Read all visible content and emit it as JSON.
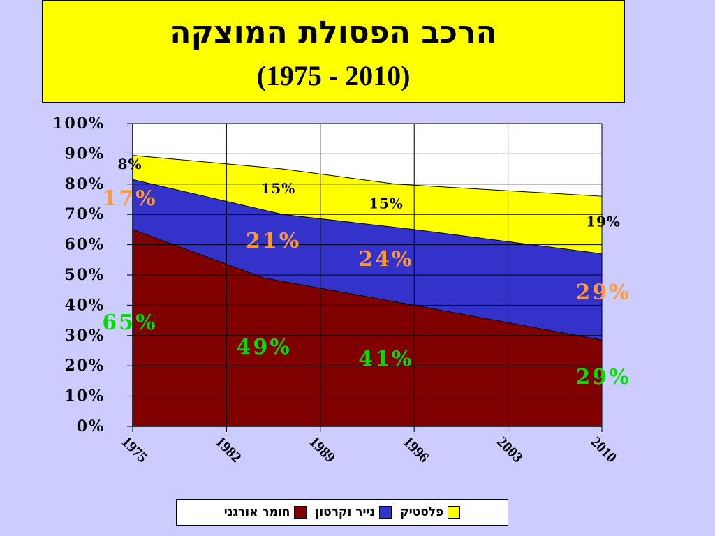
{
  "chart_data": {
    "type": "area",
    "stacked": true,
    "title": "הרכב הפסולת המוצקה",
    "subtitle": "(1975 - 2010)",
    "x": [
      "1975",
      "1982",
      "1989",
      "1996",
      "2003",
      "2010"
    ],
    "y_tick_labels": [
      "100%",
      "90%",
      "80%",
      "70%",
      "60%",
      "50%",
      "40%",
      "30%",
      "20%",
      "10%",
      "0%"
    ],
    "ylim": [
      0,
      100
    ],
    "grid": true,
    "legend_position": "bottom",
    "series": [
      {
        "name": "חומר אורגני",
        "color": "#800000",
        "points": [
          [
            0,
            65
          ],
          [
            1.4,
            49
          ],
          [
            3.0,
            40
          ],
          [
            5.0,
            28.5
          ]
        ],
        "labels": [
          {
            "text": "65%",
            "x": 0,
            "y": 32
          },
          {
            "text": "49%",
            "x": 1.4,
            "y": 24
          },
          {
            "text": "41%",
            "x": 2.7,
            "y": 20
          },
          {
            "text": "29%",
            "x": 5.0,
            "y": 14
          }
        ],
        "label_color": "#00e000"
      },
      {
        "name": "נייר וקרטון",
        "color": "#3333cc",
        "points": [
          [
            0,
            81.5
          ],
          [
            1.6,
            70
          ],
          [
            3.0,
            65
          ],
          [
            5.0,
            57
          ]
        ],
        "labels": [
          {
            "text": "17%",
            "x": 0,
            "y": 73
          },
          {
            "text": "21%",
            "x": 1.5,
            "y": 59
          },
          {
            "text": "24%",
            "x": 2.7,
            "y": 53
          },
          {
            "text": "29%",
            "x": 5.0,
            "y": 42
          }
        ],
        "label_color": "#ff9933"
      },
      {
        "name": "פלסטיק",
        "color": "#ffff00",
        "points": [
          [
            0,
            89.5
          ],
          [
            1.6,
            85
          ],
          [
            2.8,
            80
          ],
          [
            5.0,
            76
          ]
        ],
        "labels": [
          {
            "text": "8%",
            "x": 0,
            "y": 85
          },
          {
            "text": "15%",
            "x": 1.55,
            "y": 77
          },
          {
            "text": "15%",
            "x": 2.7,
            "y": 72
          },
          {
            "text": "19%",
            "x": 5.0,
            "y": 66
          }
        ],
        "label_color": "#000000"
      }
    ]
  },
  "legend": [
    {
      "label": "פלסטיק",
      "color": "#ffff00"
    },
    {
      "label": "נייר וקרטון",
      "color": "#3333cc"
    },
    {
      "label": "חומר אורגני",
      "color": "#800000"
    }
  ]
}
